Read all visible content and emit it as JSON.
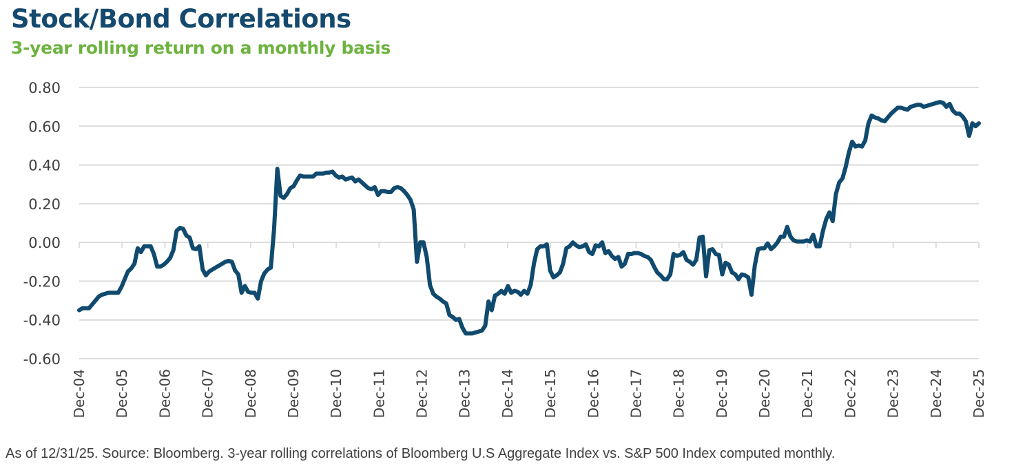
{
  "header": {
    "title": "Stock/Bond Correlations",
    "subtitle": "3-year rolling return on a monthly basis"
  },
  "footnote": "As of 12/31/25. Source: Bloomberg. 3-year rolling correlations of Bloomberg U.S Aggregate Index vs. S&P 500 Index computed monthly.",
  "colors": {
    "title": "#154a6e",
    "subtitle": "#6db33f",
    "series": "#104a6e",
    "grid": "#dcdcdc",
    "text": "#404040"
  },
  "chart_data": {
    "type": "line",
    "title": "Stock/Bond Correlations",
    "subtitle": "3-year rolling return on a monthly basis",
    "xlabel": "",
    "ylabel": "",
    "ylim": [
      -0.6,
      0.8
    ],
    "yticks": [
      "0.80",
      "0.60",
      "0.40",
      "0.20",
      "0.00",
      "-0.20",
      "-0.40",
      "-0.60"
    ],
    "ytick_values": [
      0.8,
      0.6,
      0.4,
      0.2,
      0.0,
      -0.2,
      -0.4,
      -0.6
    ],
    "xticks": [
      "Dec-04",
      "Dec-05",
      "Dec-06",
      "Dec-07",
      "Dec-08",
      "Dec-09",
      "Dec-10",
      "Dec-11",
      "Dec-12",
      "Dec-13",
      "Dec-14",
      "Dec-15",
      "Dec-16",
      "Dec-17",
      "Dec-18",
      "Dec-19",
      "Dec-20",
      "Dec-21",
      "Dec-22",
      "Dec-23",
      "Dec-24",
      "Dec-25"
    ],
    "x_range_months": [
      0,
      252
    ],
    "x_unit": "months since Dec-04",
    "grid": true,
    "legend": "none",
    "series": [
      {
        "name": "3-year rolling correlation (Bloomberg U.S Aggregate vs. S&P 500)",
        "points": [
          [
            0,
            -0.35
          ],
          [
            1,
            -0.34
          ],
          [
            2,
            -0.34
          ],
          [
            3,
            -0.34
          ],
          [
            4,
            -0.32
          ],
          [
            5,
            -0.3
          ],
          [
            6,
            -0.28
          ],
          [
            7,
            -0.27
          ],
          [
            8,
            -0.265
          ],
          [
            9,
            -0.26
          ],
          [
            10,
            -0.26
          ],
          [
            11,
            -0.26
          ],
          [
            12,
            -0.26
          ],
          [
            13,
            -0.23
          ],
          [
            14,
            -0.19
          ],
          [
            15,
            -0.15
          ],
          [
            16,
            -0.135
          ],
          [
            17,
            -0.11
          ],
          [
            18,
            -0.03
          ],
          [
            19,
            -0.05
          ],
          [
            20,
            -0.02
          ],
          [
            21,
            -0.02
          ],
          [
            22,
            -0.02
          ],
          [
            23,
            -0.06
          ],
          [
            24,
            -0.125
          ],
          [
            25,
            -0.125
          ],
          [
            26,
            -0.115
          ],
          [
            27,
            -0.1
          ],
          [
            28,
            -0.08
          ],
          [
            29,
            -0.04
          ],
          [
            30,
            0.06
          ],
          [
            31,
            0.075
          ],
          [
            32,
            0.07
          ],
          [
            33,
            0.035
          ],
          [
            34,
            0.025
          ],
          [
            35,
            -0.03
          ],
          [
            36,
            -0.035
          ],
          [
            37,
            -0.02
          ],
          [
            38,
            -0.14
          ],
          [
            39,
            -0.17
          ],
          [
            40,
            -0.15
          ],
          [
            41,
            -0.14
          ],
          [
            42,
            -0.13
          ],
          [
            43,
            -0.12
          ],
          [
            44,
            -0.11
          ],
          [
            45,
            -0.1
          ],
          [
            46,
            -0.095
          ],
          [
            47,
            -0.1
          ],
          [
            48,
            -0.145
          ],
          [
            49,
            -0.165
          ],
          [
            50,
            -0.26
          ],
          [
            51,
            -0.225
          ],
          [
            52,
            -0.255
          ],
          [
            53,
            -0.26
          ],
          [
            54,
            -0.26
          ],
          [
            55,
            -0.29
          ],
          [
            56,
            -0.2
          ],
          [
            57,
            -0.16
          ],
          [
            58,
            -0.14
          ],
          [
            59,
            -0.13
          ],
          [
            60,
            0.07
          ],
          [
            61,
            0.38
          ],
          [
            62,
            0.24
          ],
          [
            63,
            0.23
          ],
          [
            64,
            0.25
          ],
          [
            65,
            0.28
          ],
          [
            66,
            0.29
          ],
          [
            67,
            0.32
          ],
          [
            68,
            0.345
          ],
          [
            69,
            0.34
          ],
          [
            70,
            0.34
          ],
          [
            71,
            0.34
          ],
          [
            72,
            0.34
          ],
          [
            73,
            0.355
          ],
          [
            74,
            0.355
          ],
          [
            75,
            0.355
          ],
          [
            76,
            0.36
          ],
          [
            77,
            0.36
          ],
          [
            78,
            0.365
          ],
          [
            79,
            0.345
          ],
          [
            80,
            0.335
          ],
          [
            81,
            0.34
          ],
          [
            82,
            0.325
          ],
          [
            83,
            0.33
          ],
          [
            84,
            0.335
          ],
          [
            85,
            0.315
          ],
          [
            86,
            0.325
          ],
          [
            87,
            0.31
          ],
          [
            88,
            0.295
          ],
          [
            89,
            0.28
          ],
          [
            90,
            0.275
          ],
          [
            91,
            0.285
          ],
          [
            92,
            0.245
          ],
          [
            93,
            0.265
          ],
          [
            94,
            0.265
          ],
          [
            95,
            0.26
          ],
          [
            96,
            0.26
          ],
          [
            97,
            0.28
          ],
          [
            98,
            0.285
          ],
          [
            99,
            0.28
          ],
          [
            100,
            0.265
          ],
          [
            101,
            0.245
          ],
          [
            102,
            0.22
          ],
          [
            103,
            0.17
          ],
          [
            104,
            -0.1
          ],
          [
            105,
            0.0
          ],
          [
            106,
            0.0
          ],
          [
            107,
            -0.075
          ],
          [
            108,
            -0.22
          ],
          [
            109,
            -0.265
          ],
          [
            110,
            -0.28
          ],
          [
            111,
            -0.29
          ],
          [
            112,
            -0.305
          ],
          [
            113,
            -0.315
          ],
          [
            114,
            -0.375
          ],
          [
            115,
            -0.385
          ],
          [
            116,
            -0.4
          ],
          [
            117,
            -0.395
          ],
          [
            118,
            -0.44
          ],
          [
            119,
            -0.47
          ],
          [
            120,
            -0.47
          ],
          [
            121,
            -0.47
          ],
          [
            122,
            -0.465
          ],
          [
            123,
            -0.46
          ],
          [
            124,
            -0.455
          ],
          [
            125,
            -0.43
          ],
          [
            126,
            -0.305
          ],
          [
            127,
            -0.35
          ],
          [
            128,
            -0.275
          ],
          [
            129,
            -0.265
          ],
          [
            130,
            -0.25
          ],
          [
            131,
            -0.265
          ],
          [
            132,
            -0.225
          ],
          [
            133,
            -0.26
          ],
          [
            134,
            -0.25
          ],
          [
            135,
            -0.255
          ],
          [
            136,
            -0.27
          ],
          [
            137,
            -0.25
          ],
          [
            138,
            -0.265
          ],
          [
            139,
            -0.22
          ],
          [
            140,
            -0.11
          ],
          [
            141,
            -0.035
          ],
          [
            142,
            -0.02
          ],
          [
            143,
            -0.02
          ],
          [
            144,
            -0.01
          ],
          [
            145,
            -0.145
          ],
          [
            146,
            -0.18
          ],
          [
            147,
            -0.17
          ],
          [
            148,
            -0.155
          ],
          [
            149,
            -0.11
          ],
          [
            150,
            -0.03
          ],
          [
            151,
            -0.02
          ],
          [
            152,
            0.0
          ],
          [
            153,
            -0.015
          ],
          [
            154,
            -0.025
          ],
          [
            155,
            -0.02
          ],
          [
            156,
            -0.01
          ],
          [
            157,
            -0.05
          ],
          [
            158,
            -0.06
          ],
          [
            159,
            -0.015
          ],
          [
            160,
            -0.02
          ],
          [
            161,
            0.0
          ],
          [
            162,
            -0.055
          ],
          [
            163,
            -0.045
          ],
          [
            164,
            -0.07
          ],
          [
            165,
            -0.085
          ],
          [
            166,
            -0.075
          ],
          [
            167,
            -0.125
          ],
          [
            168,
            -0.11
          ],
          [
            169,
            -0.06
          ],
          [
            170,
            -0.06
          ],
          [
            171,
            -0.055
          ],
          [
            172,
            -0.055
          ],
          [
            173,
            -0.06
          ],
          [
            174,
            -0.07
          ],
          [
            175,
            -0.075
          ],
          [
            176,
            -0.09
          ],
          [
            177,
            -0.125
          ],
          [
            178,
            -0.155
          ],
          [
            179,
            -0.17
          ],
          [
            180,
            -0.19
          ],
          [
            181,
            -0.19
          ],
          [
            182,
            -0.165
          ],
          [
            183,
            -0.06
          ],
          [
            184,
            -0.07
          ],
          [
            185,
            -0.065
          ],
          [
            186,
            -0.05
          ],
          [
            187,
            -0.09
          ],
          [
            188,
            -0.1
          ],
          [
            189,
            -0.115
          ],
          [
            190,
            -0.09
          ],
          [
            191,
            0.025
          ],
          [
            192,
            0.03
          ],
          [
            193,
            -0.175
          ],
          [
            194,
            -0.04
          ],
          [
            195,
            -0.035
          ],
          [
            196,
            -0.06
          ],
          [
            197,
            -0.065
          ],
          [
            198,
            -0.165
          ],
          [
            199,
            -0.105
          ],
          [
            200,
            -0.115
          ],
          [
            201,
            -0.155
          ],
          [
            202,
            -0.165
          ],
          [
            203,
            -0.19
          ],
          [
            204,
            -0.165
          ],
          [
            205,
            -0.17
          ],
          [
            206,
            -0.18
          ],
          [
            207,
            -0.27
          ],
          [
            208,
            -0.12
          ],
          [
            209,
            -0.035
          ],
          [
            210,
            -0.03
          ],
          [
            211,
            -0.03
          ],
          [
            212,
            -0.005
          ],
          [
            213,
            -0.035
          ],
          [
            214,
            -0.02
          ],
          [
            215,
            0.0
          ],
          [
            216,
            0.03
          ],
          [
            217,
            0.03
          ],
          [
            218,
            0.08
          ],
          [
            219,
            0.03
          ],
          [
            220,
            0.01
          ],
          [
            221,
            0.005
          ],
          [
            222,
            0.005
          ],
          [
            223,
            0.005
          ],
          [
            224,
            0.01
          ],
          [
            225,
            0.005
          ],
          [
            226,
            0.04
          ],
          [
            227,
            -0.02
          ],
          [
            228,
            -0.02
          ],
          [
            229,
            0.06
          ],
          [
            230,
            0.12
          ],
          [
            231,
            0.155
          ],
          [
            232,
            0.11
          ],
          [
            233,
            0.25
          ],
          [
            234,
            0.31
          ],
          [
            235,
            0.33
          ],
          [
            236,
            0.39
          ],
          [
            237,
            0.465
          ],
          [
            238,
            0.52
          ],
          [
            239,
            0.495
          ],
          [
            240,
            0.5
          ],
          [
            241,
            0.495
          ],
          [
            242,
            0.525
          ],
          [
            243,
            0.615
          ],
          [
            244,
            0.655
          ],
          [
            245,
            0.645
          ],
          [
            246,
            0.64
          ],
          [
            247,
            0.63
          ],
          [
            248,
            0.625
          ],
          [
            249,
            0.645
          ],
          [
            250,
            0.665
          ],
          [
            251,
            0.68
          ],
          [
            252,
            0.695
          ],
          [
            253,
            0.695
          ],
          [
            254,
            0.69
          ],
          [
            255,
            0.685
          ],
          [
            256,
            0.7
          ],
          [
            257,
            0.705
          ],
          [
            258,
            0.71
          ],
          [
            259,
            0.71
          ],
          [
            260,
            0.7
          ],
          [
            261,
            0.705
          ],
          [
            262,
            0.71
          ],
          [
            263,
            0.715
          ],
          [
            264,
            0.72
          ],
          [
            265,
            0.725
          ],
          [
            266,
            0.72
          ],
          [
            267,
            0.7
          ],
          [
            268,
            0.715
          ],
          [
            269,
            0.68
          ],
          [
            270,
            0.665
          ],
          [
            271,
            0.665
          ],
          [
            272,
            0.65
          ],
          [
            273,
            0.625
          ],
          [
            274,
            0.55
          ],
          [
            275,
            0.615
          ],
          [
            276,
            0.6
          ],
          [
            277,
            0.615
          ]
        ]
      }
    ]
  }
}
